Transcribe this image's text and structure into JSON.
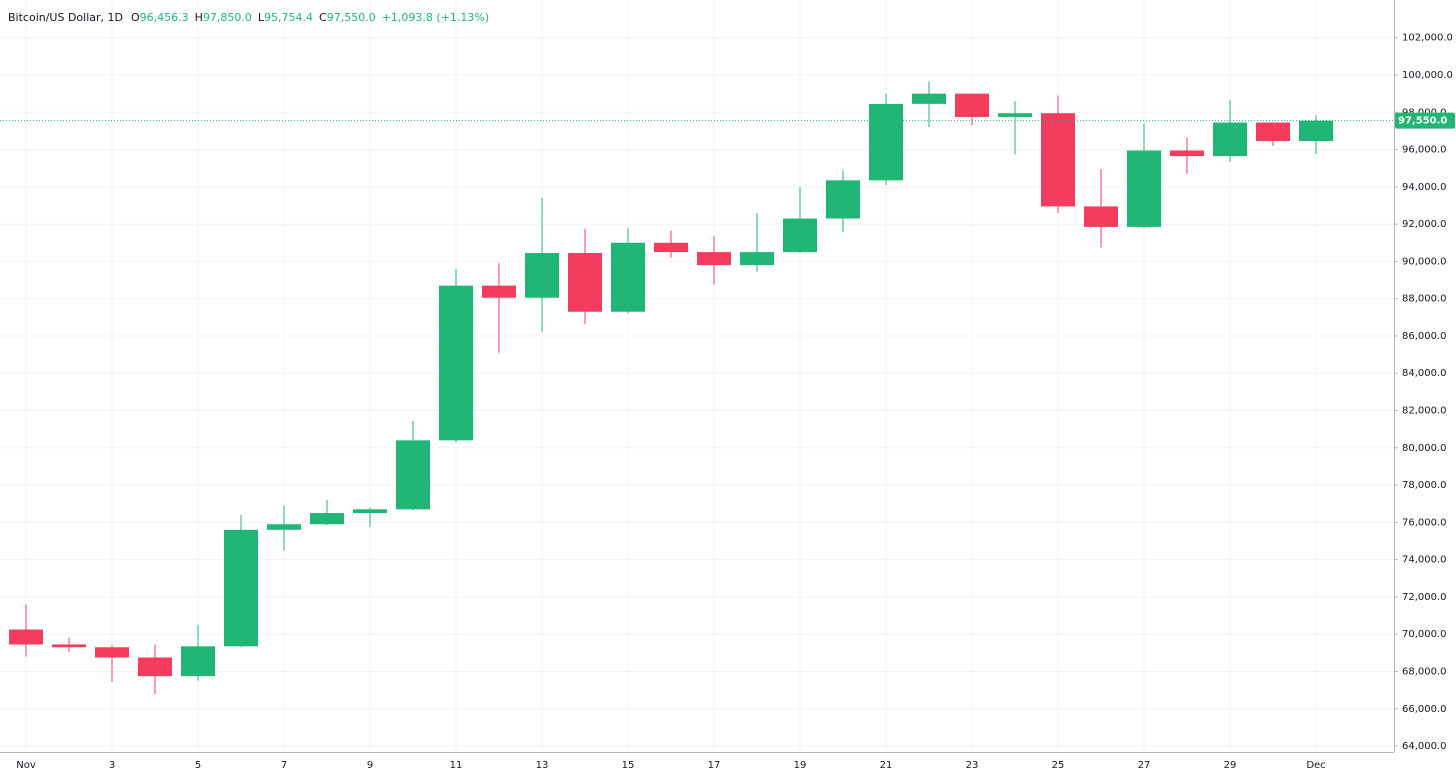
{
  "chart_data": {
    "type": "candlestick",
    "title": "Bitcoin/US Dollar, 1D",
    "legend_values": [
      {
        "label": "O",
        "value": "96,456.3"
      },
      {
        "label": "H",
        "value": "97,850.0"
      },
      {
        "label": "L",
        "value": "95,754.4"
      },
      {
        "label": "C",
        "value": "97,550.0"
      }
    ],
    "change": "+1,093.8 (+1.13%)",
    "categories": [
      "Nov",
      null,
      "3",
      null,
      "5",
      null,
      "7",
      null,
      "9",
      null,
      "11",
      null,
      "13",
      null,
      "15",
      null,
      "17",
      null,
      "19",
      null,
      "21",
      null,
      "23",
      null,
      "25",
      null,
      "27",
      null,
      "29",
      null,
      "Dec"
    ],
    "open": [
      70250,
      69450,
      69300,
      68750,
      67750,
      69350,
      75600,
      75900,
      76500,
      76700,
      80400,
      88700,
      88050,
      90450,
      87300,
      91000,
      90500,
      89800,
      90500,
      92300,
      94350,
      98450,
      99000,
      97750,
      97950,
      92950,
      91850,
      95950,
      95650,
      97450,
      96456.3
    ],
    "high": [
      71600,
      69800,
      69400,
      69450,
      70500,
      76400,
      76900,
      77200,
      76800,
      81450,
      89600,
      89900,
      93400,
      91750,
      91800,
      91650,
      91350,
      92600,
      94000,
      94900,
      99000,
      99650,
      99000,
      98600,
      98900,
      94950,
      97400,
      96650,
      98650,
      97450,
      97850
    ],
    "low": [
      68800,
      69050,
      67450,
      66800,
      67500,
      69300,
      74500,
      75850,
      75750,
      76650,
      80300,
      85100,
      86200,
      86650,
      87200,
      90200,
      88750,
      89450,
      90450,
      91600,
      94100,
      97200,
      97300,
      95750,
      92600,
      90750,
      91800,
      94700,
      95350,
      96200,
      95754.4
    ],
    "close": [
      69450,
      69300,
      68750,
      67750,
      69350,
      75600,
      75900,
      76500,
      76700,
      80400,
      88700,
      88050,
      90450,
      87300,
      91000,
      90500,
      89800,
      90500,
      92300,
      94350,
      98450,
      99000,
      97750,
      97950,
      92950,
      91850,
      95950,
      95650,
      97450,
      96456.3,
      97550
    ],
    "up_color": "#22b676",
    "down_color": "#f43c5f",
    "ylim": [
      63680,
      104024
    ],
    "yticks": [
      {
        "value": 64000,
        "label": "64,000.0"
      },
      {
        "value": 66000,
        "label": "66,000.0"
      },
      {
        "value": 68000,
        "label": "68,000.0"
      },
      {
        "value": 70000,
        "label": "70,000.0"
      },
      {
        "value": 72000,
        "label": "72,000.0"
      },
      {
        "value": 74000,
        "label": "74,000.0"
      },
      {
        "value": 76000,
        "label": "76,000.0"
      },
      {
        "value": 78000,
        "label": "78,000.0"
      },
      {
        "value": 80000,
        "label": "80,000.0"
      },
      {
        "value": 82000,
        "label": "82,000.0"
      },
      {
        "value": 84000,
        "label": "84,000.0"
      },
      {
        "value": 86000,
        "label": "86,000.0"
      },
      {
        "value": 88000,
        "label": "88,000.0"
      },
      {
        "value": 90000,
        "label": "90,000.0"
      },
      {
        "value": 92000,
        "label": "92,000.0"
      },
      {
        "value": 94000,
        "label": "94,000.0"
      },
      {
        "value": 96000,
        "label": "96,000.0"
      },
      {
        "value": 98000,
        "label": "98,000.0"
      },
      {
        "value": 100000,
        "label": "100,000.0"
      },
      {
        "value": 102000,
        "label": "102,000.0"
      }
    ],
    "last_price": {
      "value": 97550,
      "label": "97,550.0"
    },
    "grid": true
  }
}
